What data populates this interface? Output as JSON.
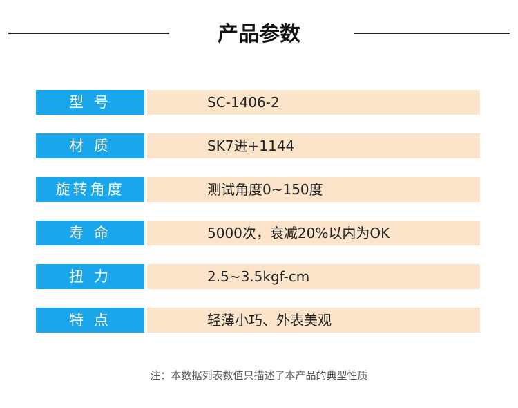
{
  "header": {
    "title": "产品参数"
  },
  "table": {
    "rows": [
      [
        "型 号",
        "SC-1406-2"
      ],
      [
        "材 质",
        "SK7进+1144"
      ],
      [
        "旋转角度",
        "测试角度0~150度"
      ],
      [
        "寿 命",
        "5000次，衰减20%以内为OK"
      ],
      [
        "扭 力",
        "2.5~3.5kgf-cm"
      ],
      [
        "特 点",
        "轻薄小巧、外表美观"
      ]
    ]
  },
  "footer": {
    "note": "注：本数据列表数值只描述了本产品的典型性质"
  }
}
